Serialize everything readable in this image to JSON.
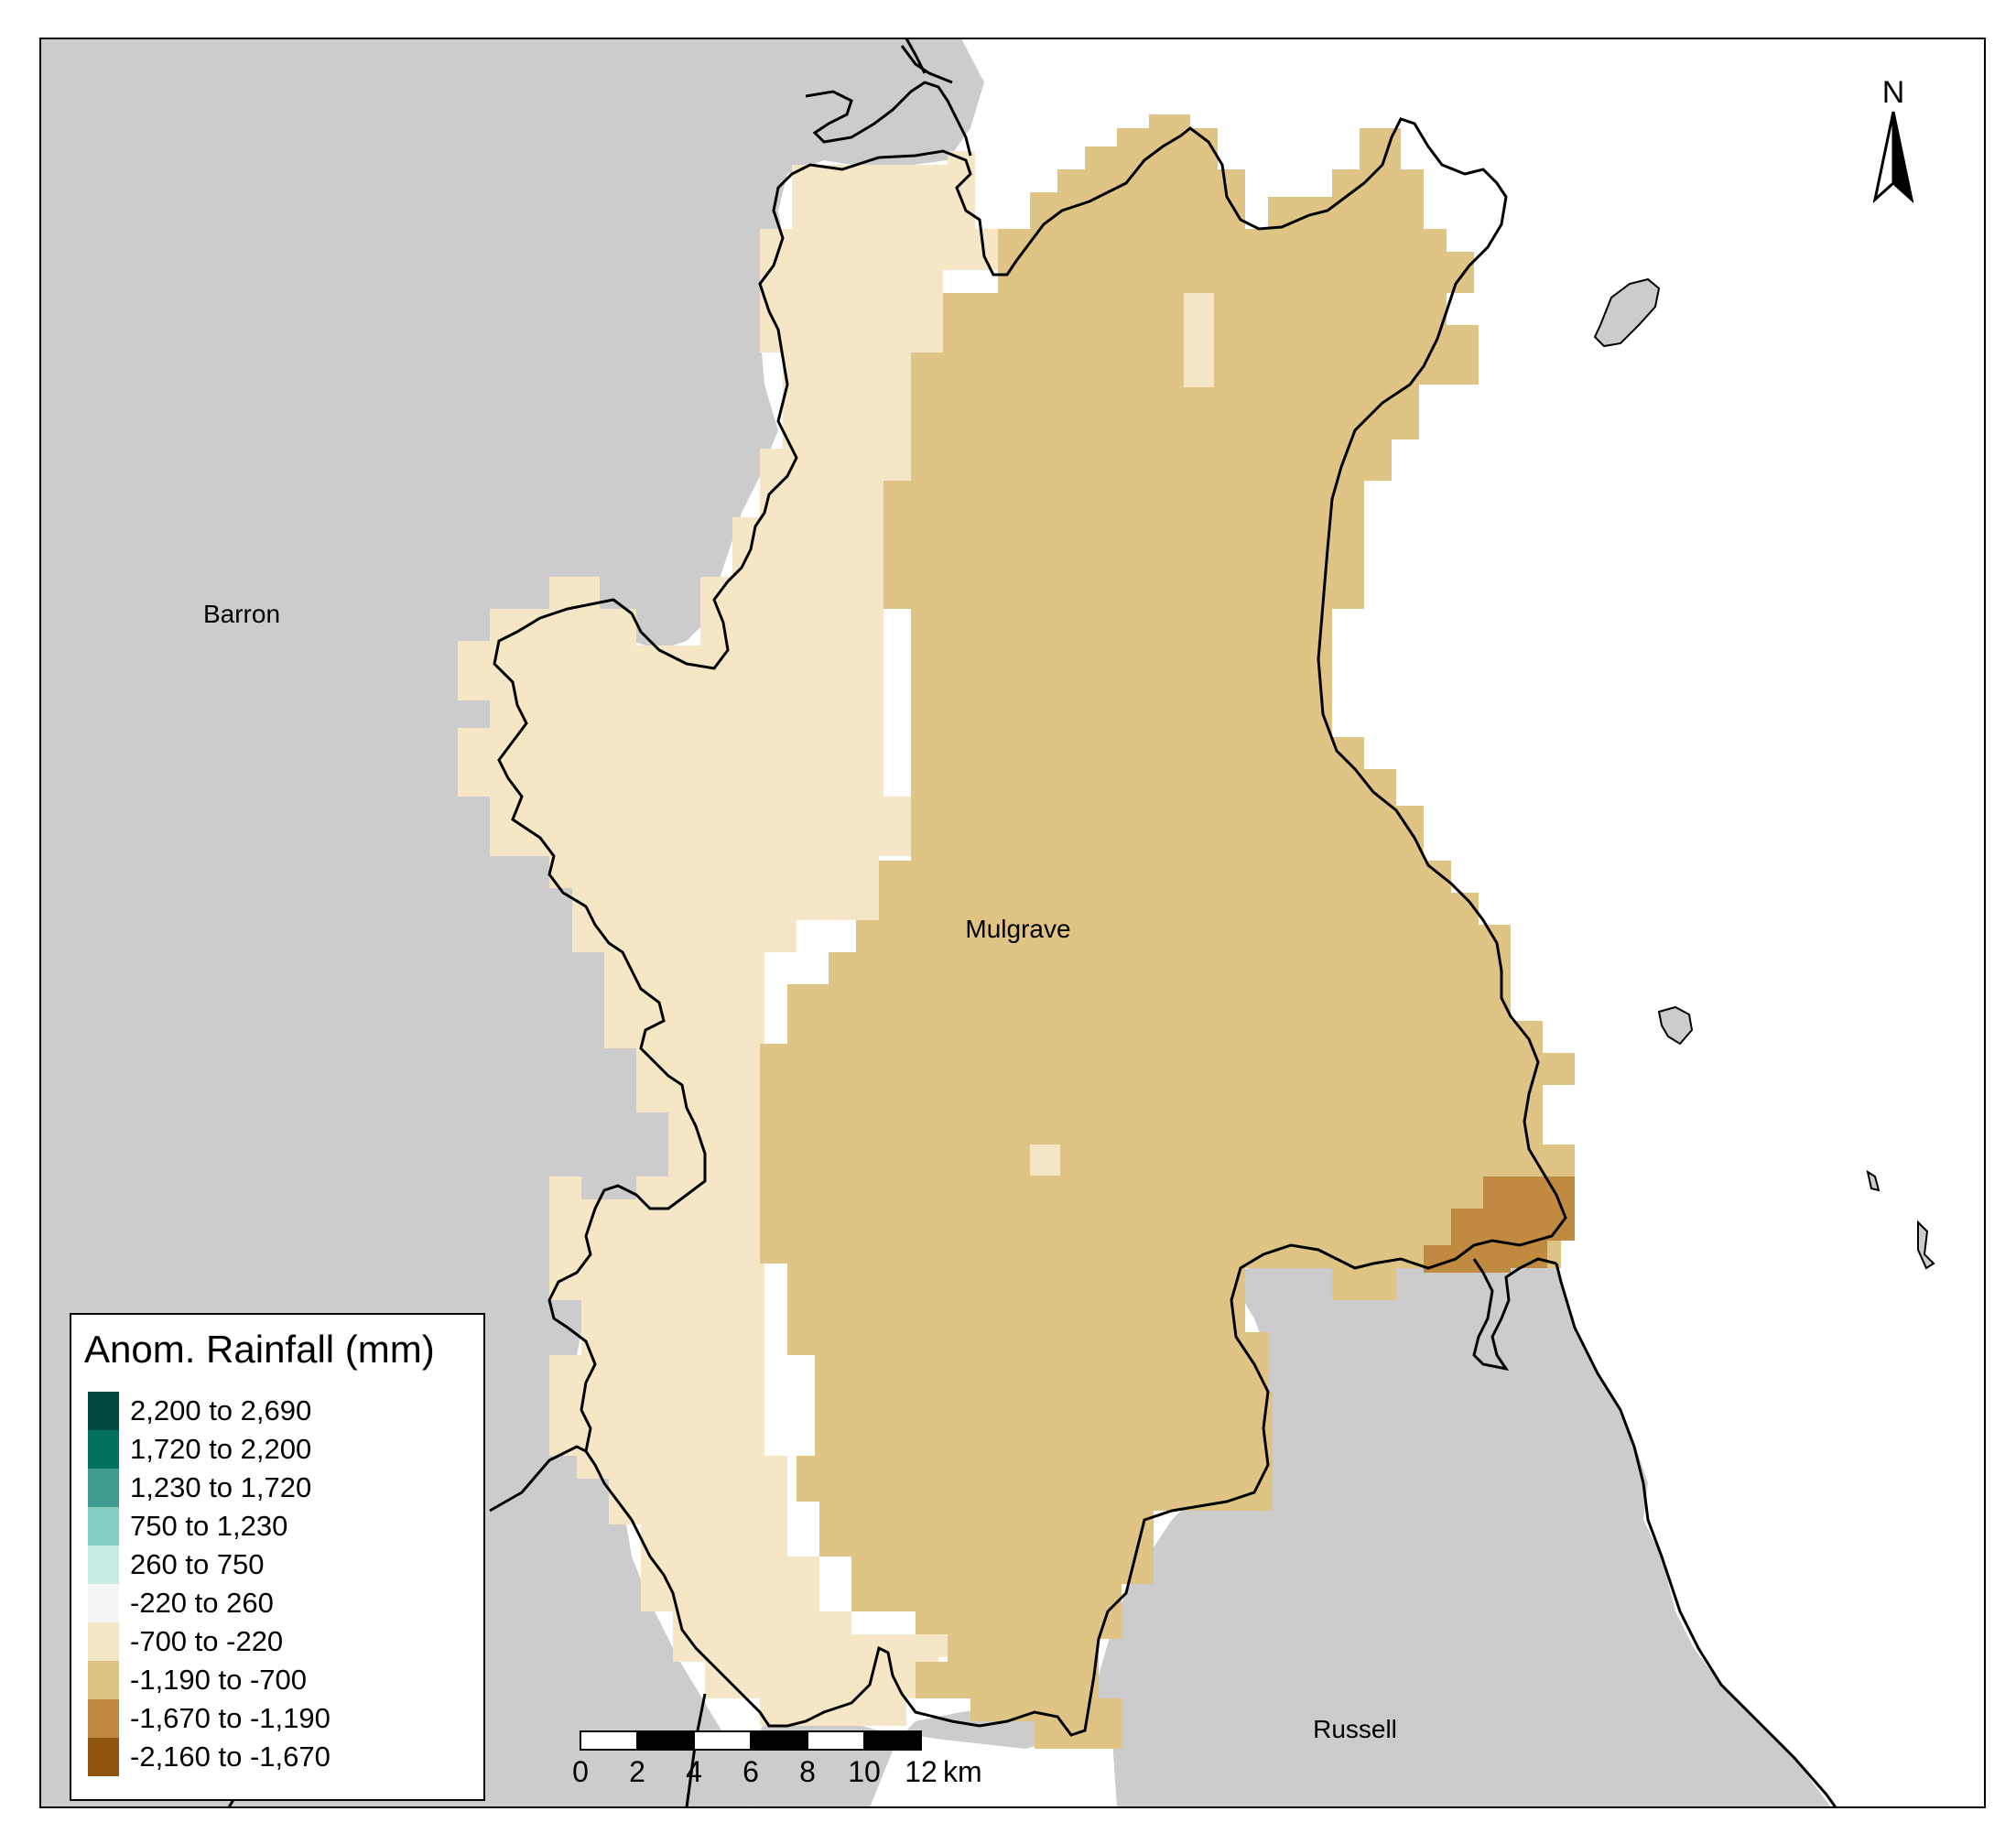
{
  "map": {
    "regions": [
      {
        "name": "Barron"
      },
      {
        "name": "Mulgrave"
      },
      {
        "name": "Russell"
      }
    ],
    "north_arrow_label": "N",
    "scale_bar": {
      "ticks": [
        "0",
        "2",
        "4",
        "6",
        "8",
        "10",
        "12"
      ],
      "unit": "km"
    },
    "colors": {
      "land": "#cccccc",
      "sea": "#ffffff",
      "band_minus_700_minus_220": "#f5e7c6",
      "band_minus_1190_minus_700": "#dfc486",
      "band_minus_1670_minus_1190": "#c08a40"
    }
  },
  "legend": {
    "title": "Anom. Rainfall (mm)",
    "items": [
      {
        "label": "2,200 to 2,690",
        "color": "#01493f"
      },
      {
        "label": "1,720 to 2,200",
        "color": "#03705f"
      },
      {
        "label": "1,230 to 1,720",
        "color": "#3f9b8f"
      },
      {
        "label": "750 to 1,230",
        "color": "#86cfc3"
      },
      {
        "label": "260 to 750",
        "color": "#c8ebe4"
      },
      {
        "label": "-220 to 260",
        "color": "#f5f5f5"
      },
      {
        "label": "-700 to -220",
        "color": "#f5e7c6"
      },
      {
        "label": "-1,190 to -700",
        "color": "#dfc486"
      },
      {
        "label": "-1,670 to -1,190",
        "color": "#c08a40"
      },
      {
        "label": "-2,160 to -1,670",
        "color": "#8f5410"
      }
    ]
  }
}
